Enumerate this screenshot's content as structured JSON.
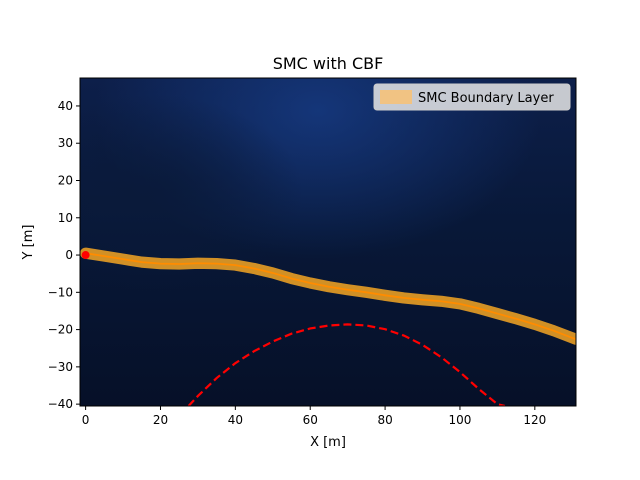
{
  "chart_data": {
    "type": "line",
    "title": "SMC with CBF",
    "xlabel": "X [m]",
    "ylabel": "Y [m]",
    "xlim": [
      -1.5,
      131
    ],
    "ylim": [
      -40.5,
      47.5
    ],
    "xticks": [
      0,
      20,
      40,
      60,
      80,
      100,
      120
    ],
    "yticks": [
      -40,
      -30,
      -20,
      -10,
      0,
      10,
      20,
      30,
      40
    ],
    "xtick_labels": [
      "0",
      "20",
      "40",
      "60",
      "80",
      "100",
      "120"
    ],
    "ytick_labels": [
      "−40",
      "−30",
      "−20",
      "−10",
      "0",
      "10",
      "20",
      "30",
      "40"
    ],
    "grid": false,
    "background": "satellite imagery (dark blue terrain)",
    "legend": {
      "position": "top-right",
      "entries": [
        "SMC Boundary Layer"
      ]
    },
    "series": [
      {
        "name": "SMC Boundary Layer",
        "style": "band",
        "color": "#f5a623",
        "band_halfwidth": 1.5,
        "x": [
          0,
          5,
          10,
          15,
          20,
          25,
          30,
          35,
          40,
          45,
          50,
          55,
          60,
          65,
          70,
          75,
          80,
          85,
          90,
          95,
          100,
          105,
          110,
          115,
          120,
          125,
          131
        ],
        "y": [
          0.5,
          -0.3,
          -1.1,
          -1.9,
          -2.3,
          -2.4,
          -2.2,
          -2.3,
          -2.7,
          -3.6,
          -4.8,
          -6.3,
          -7.5,
          -8.5,
          -9.3,
          -10.0,
          -10.8,
          -11.5,
          -12.0,
          -12.4,
          -13.1,
          -14.3,
          -15.7,
          -17.1,
          -18.6,
          -20.3,
          -22.6
        ]
      },
      {
        "name": "",
        "style": "line",
        "color": "#ff8c00",
        "x": [
          0,
          5,
          10,
          15,
          20,
          25,
          30,
          35,
          40,
          45,
          50,
          55,
          60,
          65,
          70,
          75,
          80,
          85,
          90,
          95,
          100,
          105,
          110,
          115,
          120,
          125,
          131
        ],
        "y": [
          0.5,
          -0.3,
          -1.1,
          -1.9,
          -2.3,
          -2.4,
          -2.2,
          -2.3,
          -2.7,
          -3.6,
          -4.8,
          -6.3,
          -7.5,
          -8.5,
          -9.3,
          -10.0,
          -10.8,
          -11.5,
          -12.0,
          -12.4,
          -13.1,
          -14.3,
          -15.7,
          -17.1,
          -18.6,
          -20.3,
          -22.6
        ]
      },
      {
        "name": "",
        "style": "dashed",
        "color": "#ff0000",
        "x": [
          27.5,
          30,
          35,
          40,
          45,
          50,
          55,
          60,
          65,
          70,
          75,
          80,
          85,
          90,
          95,
          100,
          105,
          110,
          112
        ],
        "y": [
          -40.5,
          -37.8,
          -33.0,
          -29.0,
          -25.8,
          -23.2,
          -21.1,
          -19.7,
          -18.9,
          -18.6,
          -18.9,
          -19.9,
          -21.6,
          -24.1,
          -27.4,
          -31.4,
          -35.9,
          -40.0,
          -40.5
        ]
      },
      {
        "name": "",
        "style": "marker",
        "color": "#ff0000",
        "x": [
          0
        ],
        "y": [
          0
        ]
      }
    ]
  }
}
